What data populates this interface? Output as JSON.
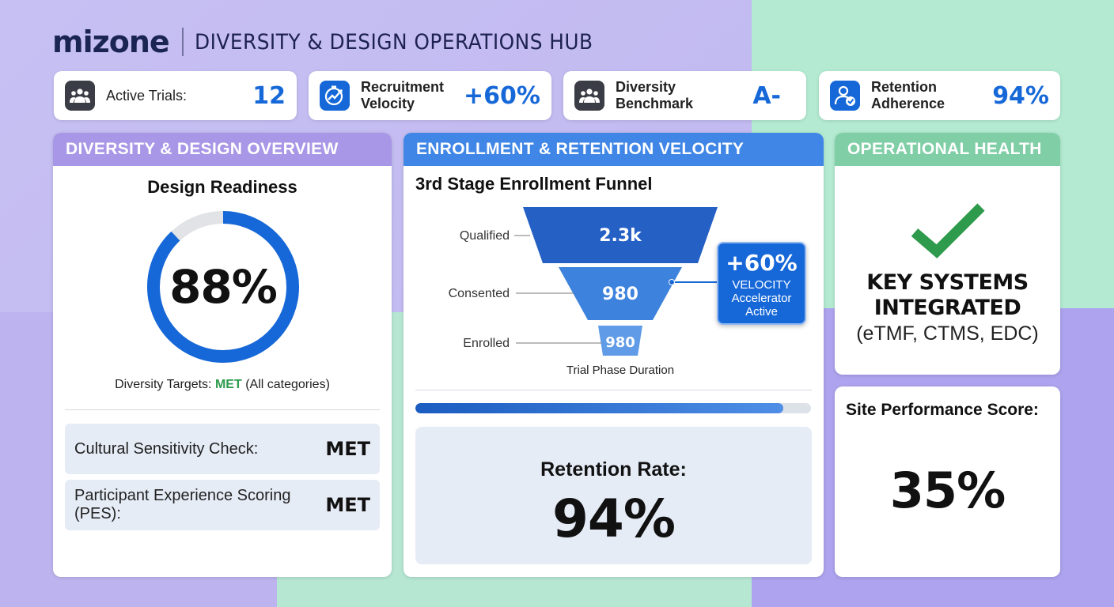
{
  "header": {
    "logo": "mizone",
    "title": "DIVERSITY & DESIGN OPERATIONS HUB"
  },
  "kpis": [
    {
      "label": "Active Trials:",
      "value": "12",
      "icon": "people-icon"
    },
    {
      "label": "Recruitment\nVelocity",
      "value": "+60%",
      "icon": "stopwatch-trend-icon"
    },
    {
      "label": "Diversity\nBenchmark",
      "value": "A-",
      "icon": "people-icon"
    },
    {
      "label": "Retention\nAdherence",
      "value": "94%",
      "icon": "user-check-icon"
    }
  ],
  "overview": {
    "heading": "DIVERSITY & DESIGN OVERVIEW",
    "readiness_title": "Design Readiness",
    "readiness_value": "88%",
    "readiness_fraction": 0.88,
    "targets_prefix": "Diversity Targets:",
    "targets_status": "MET",
    "targets_suffix": "(All categories)",
    "checks": [
      {
        "label": "Cultural Sensitivity Check:",
        "value": "MET"
      },
      {
        "label": "Participant Experience Scoring (PES):",
        "value": "MET"
      }
    ]
  },
  "velocity": {
    "heading": "ENROLLMENT & RETENTION VELOCITY",
    "funnel_title": "3rd Stage Enrollment Funnel",
    "stages": [
      {
        "label": "Qualified",
        "value": "2.3k"
      },
      {
        "label": "Consented",
        "value": "980"
      },
      {
        "label": "Enrolled",
        "value": "980"
      }
    ],
    "callout_value": "+60%",
    "callout_line1": "VELOCITY",
    "callout_line2": "Accelerator",
    "callout_line3": "Active",
    "duration_label": "Trial Phase Duration",
    "progress_fraction": 0.93,
    "retention_label": "Retention Rate:",
    "retention_value": "94%"
  },
  "health": {
    "heading": "OPERATIONAL HEALTH",
    "systems_line1": "KEY SYSTEMS",
    "systems_line2": "INTEGRATED",
    "systems_list": "(eTMF, CTMS, EDC)",
    "site_label": "Site Performance Score:",
    "site_value": "35%"
  },
  "colors": {
    "accent_blue": "#1668d8",
    "met_green": "#2e9a4c",
    "check_green": "#2e9a4c",
    "overview_header": "#a897e6",
    "velocity_header": "#3f86e6",
    "health_header": "#7fcea6"
  }
}
